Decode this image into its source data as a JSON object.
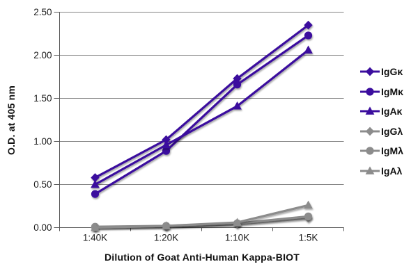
{
  "chart_data": {
    "type": "line",
    "title": "",
    "xlabel": "Dilution of Goat Anti-Human Kappa-BIOT",
    "ylabel": "O.D. at 405 nm",
    "categories": [
      "1:40K",
      "1:20K",
      "1:10K",
      "1:5K"
    ],
    "ylim": [
      0,
      2.5
    ],
    "ytick_step": 0.5,
    "ytick_labels": [
      "0.00",
      "0.50",
      "1.00",
      "1.50",
      "2.00",
      "2.50"
    ],
    "grid": "horizontal-only",
    "legend_position": "right",
    "series": [
      {
        "name": "IgGκ",
        "marker": "diamond",
        "color": "#3B0D9E",
        "values": [
          0.58,
          1.02,
          1.73,
          2.35
        ]
      },
      {
        "name": "IgMκ",
        "marker": "circle",
        "color": "#3B0D9E",
        "values": [
          0.39,
          0.89,
          1.66,
          2.23
        ]
      },
      {
        "name": "IgAκ",
        "marker": "triangle",
        "color": "#3B0D9E",
        "values": [
          0.5,
          0.96,
          1.41,
          2.06
        ]
      },
      {
        "name": "IgGλ",
        "marker": "diamond",
        "color": "#8C8C8C",
        "values": [
          0.0,
          0.01,
          0.04,
          0.11
        ]
      },
      {
        "name": "IgMλ",
        "marker": "circle",
        "color": "#8C8C8C",
        "values": [
          0.01,
          0.02,
          0.05,
          0.13
        ]
      },
      {
        "name": "IgAλ",
        "marker": "triangle",
        "color": "#8C8C8C",
        "values": [
          0.0,
          0.02,
          0.06,
          0.26
        ]
      }
    ],
    "colors": {
      "kappa_series": "#3B0D9E",
      "lambda_series": "#8C8C8C",
      "gridline": "#848484",
      "axis": "#5a5a5a",
      "tick_text": "#1a1a1a",
      "background": "#ffffff"
    }
  }
}
